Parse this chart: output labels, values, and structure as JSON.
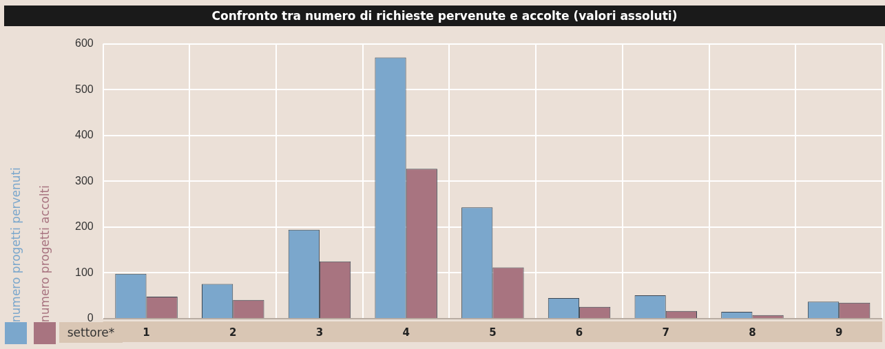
{
  "chart_data": {
    "type": "bar",
    "title": "Confronto tra numero di richieste pervenute e accolte (valori assoluti)",
    "xlabel": "settore*",
    "categories": [
      "1",
      "2",
      "3",
      "4",
      "5",
      "6",
      "7",
      "8",
      "9"
    ],
    "series": [
      {
        "name": "numero progetti pervenuti",
        "color": "#7ba7cc",
        "values": [
          98,
          76,
          194,
          570,
          243,
          45,
          51,
          15,
          37
        ]
      },
      {
        "name": "numero progetti accolti",
        "color": "#a87480",
        "values": [
          48,
          41,
          125,
          327,
          112,
          26,
          17,
          8,
          35
        ]
      }
    ],
    "ylim": [
      0,
      600
    ],
    "yticks": [
      0,
      100,
      200,
      300,
      400,
      500,
      600
    ],
    "grid": true,
    "legend": "left"
  }
}
